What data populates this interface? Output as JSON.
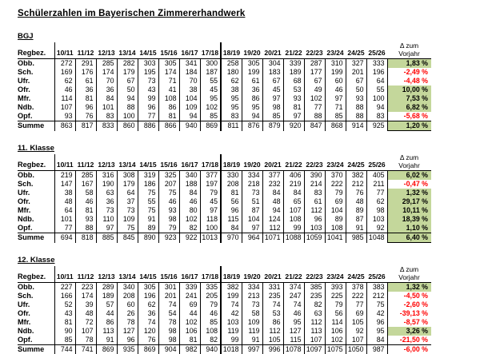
{
  "title": "Schülerzahlen im Bayerischen Zimmererhandwerk",
  "colors": {
    "positive_fill": "#c4d79b",
    "negative_text": "#ff0000"
  },
  "columns": {
    "region": "Regbez.",
    "years": [
      "10/11",
      "11/12",
      "12/13",
      "13/14",
      "14/15",
      "15/16",
      "16/17",
      "17/18",
      "18/19",
      "19/20",
      "20/21",
      "21/22",
      "22/23",
      "23/24",
      "24/25",
      "25/26"
    ],
    "delta_line1": "Δ zum",
    "delta_line2": "Vorjahr"
  },
  "tables": [
    {
      "label": "BGJ",
      "rows": [
        {
          "region": "Obb.",
          "values": [
            272,
            291,
            285,
            282,
            303,
            305,
            341,
            300,
            258,
            305,
            304,
            339,
            287,
            310,
            327,
            333
          ],
          "delta": "1,83 %"
        },
        {
          "region": "Sch.",
          "values": [
            169,
            176,
            174,
            179,
            195,
            174,
            184,
            187,
            180,
            199,
            183,
            189,
            177,
            199,
            201,
            196
          ],
          "delta": "-2,49 %"
        },
        {
          "region": "Ufr.",
          "values": [
            62,
            61,
            70,
            67,
            73,
            71,
            70,
            55,
            62,
            61,
            67,
            68,
            67,
            60,
            67,
            64
          ],
          "delta": "-4,48 %"
        },
        {
          "region": "Ofr.",
          "values": [
            46,
            36,
            36,
            50,
            43,
            41,
            38,
            45,
            38,
            36,
            45,
            53,
            49,
            46,
            50,
            55
          ],
          "delta": "10,00 %"
        },
        {
          "region": "Mfr.",
          "values": [
            114,
            81,
            84,
            94,
            99,
            108,
            104,
            95,
            95,
            86,
            97,
            93,
            102,
            97,
            93,
            100
          ],
          "delta": "7,53 %"
        },
        {
          "region": "Ndb.",
          "values": [
            107,
            96,
            101,
            88,
            96,
            86,
            109,
            102,
            95,
            95,
            98,
            81,
            77,
            71,
            88,
            94
          ],
          "delta": "6,82 %"
        },
        {
          "region": "Opf.",
          "values": [
            93,
            76,
            83,
            100,
            77,
            81,
            94,
            85,
            83,
            94,
            85,
            97,
            88,
            85,
            88,
            83
          ],
          "delta": "-5,68 %"
        }
      ],
      "summe": {
        "region": "Summe",
        "values": [
          863,
          817,
          833,
          860,
          886,
          866,
          940,
          869,
          811,
          876,
          879,
          920,
          847,
          868,
          914,
          925
        ],
        "delta": "1,20 %"
      }
    },
    {
      "label": "11. Klasse",
      "rows": [
        {
          "region": "Obb.",
          "values": [
            219,
            285,
            316,
            308,
            319,
            325,
            340,
            377,
            330,
            334,
            377,
            406,
            390,
            370,
            382,
            405
          ],
          "delta": "6,02 %"
        },
        {
          "region": "Sch.",
          "values": [
            147,
            167,
            190,
            179,
            186,
            207,
            188,
            197,
            208,
            218,
            232,
            219,
            214,
            222,
            212,
            211
          ],
          "delta": "-0,47 %"
        },
        {
          "region": "Ufr.",
          "values": [
            38,
            58,
            63,
            64,
            75,
            75,
            84,
            79,
            81,
            73,
            84,
            84,
            83,
            79,
            76,
            77
          ],
          "delta": "1,32 %"
        },
        {
          "region": "Ofr.",
          "values": [
            48,
            46,
            36,
            37,
            55,
            46,
            46,
            45,
            56,
            51,
            48,
            65,
            61,
            69,
            48,
            62
          ],
          "delta": "29,17 %"
        },
        {
          "region": "Mfr.",
          "values": [
            64,
            81,
            73,
            73,
            75,
            93,
            80,
            97,
            96,
            87,
            94,
            107,
            112,
            104,
            89,
            98
          ],
          "delta": "10,11 %"
        },
        {
          "region": "Ndb.",
          "values": [
            101,
            93,
            110,
            109,
            91,
            98,
            102,
            118,
            115,
            104,
            124,
            108,
            96,
            89,
            87,
            103
          ],
          "delta": "18,39 %"
        },
        {
          "region": "Opf.",
          "values": [
            77,
            88,
            97,
            75,
            89,
            79,
            82,
            100,
            84,
            97,
            112,
            99,
            103,
            108,
            91,
            92
          ],
          "delta": "1,10 %"
        }
      ],
      "summe": {
        "region": "Summe",
        "values": [
          694,
          818,
          885,
          845,
          890,
          923,
          922,
          1013,
          970,
          964,
          1071,
          1088,
          1059,
          1041,
          985,
          1048
        ],
        "delta": "6,40 %"
      }
    },
    {
      "label": "12. Klasse",
      "rows": [
        {
          "region": "Obb.",
          "values": [
            227,
            223,
            289,
            340,
            305,
            301,
            339,
            335,
            382,
            334,
            331,
            374,
            385,
            393,
            378,
            383
          ],
          "delta": "1,32 %"
        },
        {
          "region": "Sch.",
          "values": [
            166,
            174,
            189,
            208,
            196,
            201,
            241,
            205,
            199,
            213,
            235,
            247,
            235,
            225,
            222,
            212
          ],
          "delta": "-4,50 %"
        },
        {
          "region": "Ufr.",
          "values": [
            52,
            39,
            57,
            60,
            62,
            74,
            69,
            79,
            74,
            73,
            74,
            74,
            82,
            79,
            77,
            75
          ],
          "delta": "-2,60 %"
        },
        {
          "region": "Ofr.",
          "values": [
            43,
            48,
            44,
            26,
            36,
            54,
            44,
            46,
            42,
            58,
            53,
            46,
            63,
            56,
            69,
            42
          ],
          "delta": "-39,13 %"
        },
        {
          "region": "Mfr.",
          "values": [
            81,
            72,
            86,
            78,
            74,
            78,
            102,
            85,
            103,
            109,
            86,
            95,
            112,
            114,
            105,
            96
          ],
          "delta": "-8,57 %"
        },
        {
          "region": "Ndb.",
          "values": [
            90,
            107,
            113,
            127,
            120,
            98,
            106,
            108,
            119,
            119,
            112,
            127,
            113,
            106,
            92,
            95
          ],
          "delta": "3,26 %"
        },
        {
          "region": "Opf.",
          "values": [
            85,
            78,
            91,
            96,
            76,
            98,
            81,
            82,
            99,
            91,
            105,
            115,
            107,
            102,
            107,
            84
          ],
          "delta": "-21,50 %"
        }
      ],
      "summe": {
        "region": "Summe",
        "values": [
          744,
          741,
          869,
          935,
          869,
          904,
          982,
          940,
          1018,
          997,
          996,
          1078,
          1097,
          1075,
          1050,
          987
        ],
        "delta": "-6,00 %"
      }
    }
  ]
}
